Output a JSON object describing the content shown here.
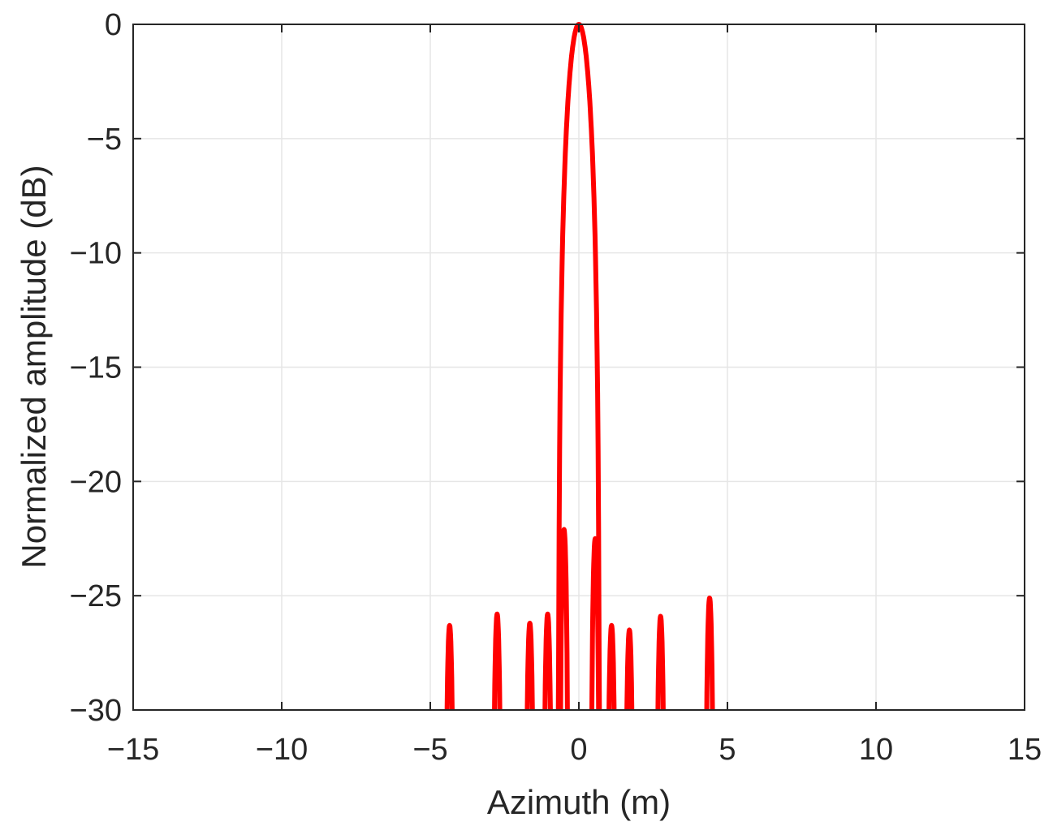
{
  "chart_data": {
    "type": "line",
    "title": "",
    "xlabel": "Azimuth (m)",
    "ylabel": "Normalized amplitude (dB)",
    "xlim": [
      -15,
      15
    ],
    "ylim": [
      -30,
      0
    ],
    "xticks": [
      -15,
      -10,
      -5,
      0,
      5,
      10,
      15
    ],
    "yticks": [
      -30,
      -25,
      -20,
      -15,
      -10,
      -5,
      0
    ],
    "xtick_labels": [
      "−15",
      "−10",
      "−5",
      "0",
      "5",
      "10",
      "15"
    ],
    "ytick_labels": [
      "−30",
      "−25",
      "−20",
      "−15",
      "−10",
      "−5",
      "0"
    ],
    "grid": true,
    "series": [
      {
        "color": "#ff0000",
        "main_lobe": {
          "peak_x": 0.0,
          "peak_y": 0,
          "left_null_x": -0.7,
          "right_null_x": 0.7
        },
        "sidelobes": [
          {
            "x": -4.35,
            "peak_y": -26.3,
            "width": 0.3
          },
          {
            "x": -2.75,
            "peak_y": -25.8,
            "width": 0.3
          },
          {
            "x": -1.65,
            "peak_y": -26.2,
            "width": 0.3
          },
          {
            "x": -1.05,
            "peak_y": -25.8,
            "width": 0.3
          },
          {
            "x": -0.5,
            "peak_y": -22.1,
            "width": 0.3
          },
          {
            "x": 0.55,
            "peak_y": -22.5,
            "width": 0.3
          },
          {
            "x": 1.1,
            "peak_y": -26.3,
            "width": 0.3
          },
          {
            "x": 1.7,
            "peak_y": -26.5,
            "width": 0.3
          },
          {
            "x": 2.75,
            "peak_y": -25.9,
            "width": 0.3
          },
          {
            "x": 4.4,
            "peak_y": -25.1,
            "width": 0.3
          }
        ]
      }
    ]
  }
}
